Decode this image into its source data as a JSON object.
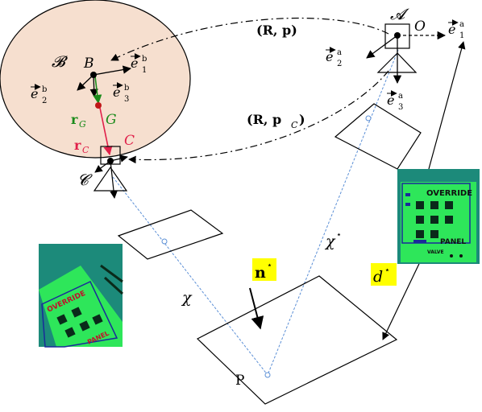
{
  "labels": {
    "body_frame": "𝓑",
    "body_point": "B",
    "body_e1": "e",
    "body_e1_sup": "b",
    "body_e1_sub": "1",
    "body_e2": "e",
    "body_e2_sup": "b",
    "body_e2_sub": "2",
    "body_e3": "e",
    "body_e3_sup": "b",
    "body_e3_sub": "3",
    "rG": "r",
    "rG_sub": "G",
    "G": "G",
    "rC": "r",
    "rC_sub": "C",
    "C": "C",
    "camera_frame": "𝓒",
    "world_frame": "𝓐",
    "origin": "O",
    "world_e1": "e",
    "world_e1_sup": "a",
    "world_e1_sub": "1",
    "world_e2": "e",
    "world_e2_sup": "a",
    "world_e2_sub": "2",
    "world_e3": "e",
    "world_e3_sup": "a",
    "world_e3_sub": "3",
    "pose_top": "(R, p)",
    "pose_bottom_main": "(R, p",
    "pose_bottom_sub": "C",
    "pose_bottom_close": ")",
    "chi": "χ",
    "chi_star": "χ",
    "star": "⋆",
    "normal": "n",
    "distance": "d",
    "plane": "P",
    "panel_top": "OVERRIDE",
    "panel_bottom": "PANEL",
    "panel_valve": "VALVE"
  },
  "colors": {
    "body_fill": "#f6dfcf",
    "highlight": "#ffff00",
    "green_label": "#1a8a1a",
    "red_label": "#e0204a",
    "ray_blue": "#5b8fd6",
    "panel_green": "#2ee65a",
    "panel_bg": "#1c8a7a"
  }
}
